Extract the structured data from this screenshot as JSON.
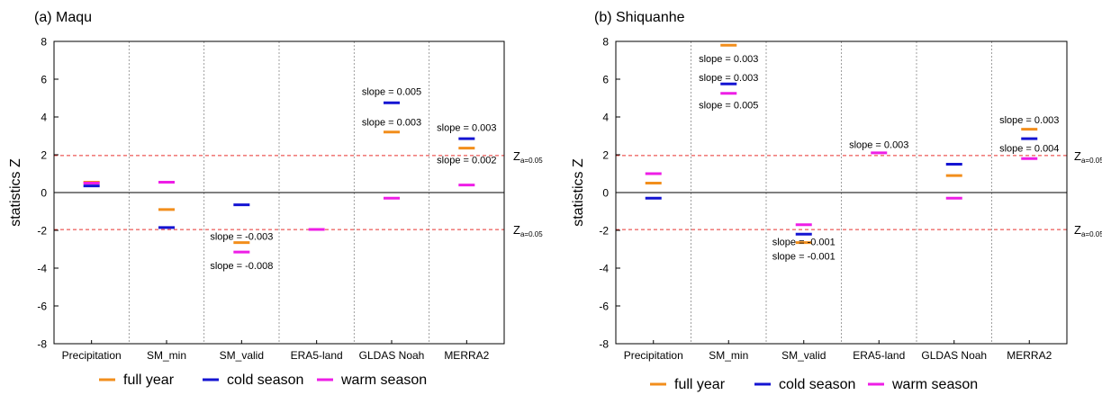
{
  "colors": {
    "full_year": "#f28e1c",
    "cold_season": "#1414d2",
    "warm_season": "#ee1ee6",
    "threshold": "#e8322e",
    "frame": "#000000",
    "separator": "#888888"
  },
  "chart_data": [
    {
      "type": "scatter",
      "title": "(a) Maqu",
      "ylabel": "statistics Z",
      "xlabel": "",
      "ylim": [
        -8,
        8
      ],
      "yticks": [
        "-8",
        "-6",
        "-4",
        "-2",
        "0",
        "2",
        "4",
        "6",
        "8"
      ],
      "categories": [
        "Precipitation",
        "SM_min",
        "SM_valid",
        "ERA5-land",
        "GLDAS Noah",
        "MERRA2"
      ],
      "grid": false,
      "series": [
        {
          "name": "full year",
          "values": [
            0.55,
            -0.9,
            -2.65,
            null,
            3.2,
            2.35
          ]
        },
        {
          "name": "cold season",
          "values": [
            0.35,
            -1.85,
            -0.65,
            null,
            4.75,
            2.85
          ]
        },
        {
          "name": "warm season",
          "values": [
            0.5,
            0.55,
            -3.15,
            -1.95,
            -0.3,
            0.4
          ]
        }
      ],
      "threshold_value": 1.96,
      "threshold_label": {
        "text": "Z",
        "sub": "a=0.05"
      },
      "annotations": [
        {
          "text": "slope = -0.003",
          "category": "SM_valid",
          "y": -2.3
        },
        {
          "text": "slope = -0.008",
          "category": "SM_valid",
          "y": -3.85
        },
        {
          "text": "slope = 0.005",
          "category": "GLDAS Noah",
          "y": 5.35
        },
        {
          "text": "slope = 0.003",
          "category": "GLDAS Noah",
          "y": 3.75
        },
        {
          "text": "slope = 0.003",
          "category": "MERRA2",
          "y": 3.45
        },
        {
          "text": "slope = 0.002",
          "category": "MERRA2",
          "y": 1.75
        }
      ],
      "legend_position": "bottom"
    },
    {
      "type": "scatter",
      "title": "(b) Shiquanhe",
      "ylabel": "statistics Z",
      "xlabel": "",
      "ylim": [
        -8,
        8
      ],
      "yticks": [
        "-8",
        "-6",
        "-4",
        "-2",
        "0",
        "2",
        "4",
        "6",
        "8"
      ],
      "categories": [
        "Precipitation",
        "SM_min",
        "SM_valid",
        "ERA5-land",
        "GLDAS Noah",
        "MERRA2"
      ],
      "grid": false,
      "series": [
        {
          "name": "full year",
          "values": [
            0.5,
            7.8,
            -2.65,
            null,
            0.9,
            3.35
          ]
        },
        {
          "name": "cold season",
          "values": [
            -0.3,
            5.75,
            -2.2,
            null,
            1.5,
            2.85
          ]
        },
        {
          "name": "warm season",
          "values": [
            1.0,
            5.25,
            -1.7,
            2.1,
            -0.3,
            1.8
          ]
        }
      ],
      "threshold_value": 1.96,
      "threshold_label": {
        "text": "Z",
        "sub": "a=0.05"
      },
      "annotations": [
        {
          "text": "slope = 0.003",
          "category": "SM_min",
          "y": 7.1
        },
        {
          "text": "slope = 0.003",
          "category": "SM_min",
          "y": 6.1
        },
        {
          "text": "slope = 0.005",
          "category": "SM_min",
          "y": 4.65
        },
        {
          "text": "slope = 0.003",
          "category": "ERA5-land",
          "y": 2.55
        },
        {
          "text": "slope = -0.001",
          "category": "SM_valid",
          "y": -2.6
        },
        {
          "text": "slope = -0.001",
          "category": "SM_valid",
          "y": -3.35
        },
        {
          "text": "slope = 0.003",
          "category": "MERRA2",
          "y": 3.85
        },
        {
          "text": "slope = 0.004",
          "category": "MERRA2",
          "y": 2.35
        }
      ],
      "legend_position": "bottom"
    }
  ]
}
